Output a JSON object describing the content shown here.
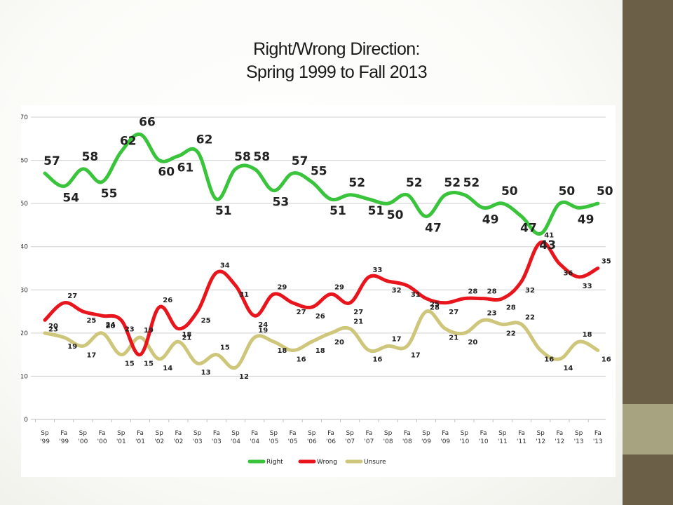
{
  "title": {
    "line1": "Right/Wrong Direction:",
    "line2": "Spring 1999 to  Fall 2013"
  },
  "colors": {
    "right": "#39c43b",
    "wrong": "#e8161c",
    "unsure": "#cec67a",
    "sidebar_dark": "#6b5f48",
    "sidebar_light": "#a7a381"
  },
  "chart_data": {
    "type": "line",
    "categories": [
      [
        "Sp",
        "'99"
      ],
      [
        "Fa",
        "'99"
      ],
      [
        "Sp",
        "'00"
      ],
      [
        "Fa",
        "'00"
      ],
      [
        "Sp",
        "'01"
      ],
      [
        "Fa",
        "'01"
      ],
      [
        "Sp",
        "'02"
      ],
      [
        "Fa",
        "'02"
      ],
      [
        "Sp",
        "'03"
      ],
      [
        "Fa",
        "'03"
      ],
      [
        "Sp",
        "'04"
      ],
      [
        "Fa",
        "'04"
      ],
      [
        "Sp",
        "'05"
      ],
      [
        "Fa",
        "'05"
      ],
      [
        "Sp",
        "'06"
      ],
      [
        "Fa",
        "'06"
      ],
      [
        "Sp",
        "'07"
      ],
      [
        "Fa",
        "'07"
      ],
      [
        "Sp",
        "'08"
      ],
      [
        "Fa",
        "'08"
      ],
      [
        "Sp",
        "'09"
      ],
      [
        "Fa",
        "'09"
      ],
      [
        "Sp",
        "'10"
      ],
      [
        "Fa",
        "'10"
      ],
      [
        "Sp",
        "'11"
      ],
      [
        "Fa",
        "'11"
      ],
      [
        "Sp",
        "'12"
      ],
      [
        "Fa",
        "'12"
      ],
      [
        "Sp",
        "'13"
      ],
      [
        "Fa",
        "'13"
      ]
    ],
    "series": [
      {
        "name": "Right",
        "values": [
          57,
          54,
          58,
          55,
          62,
          66,
          60,
          61,
          62,
          51,
          58,
          58,
          53,
          57,
          55,
          51,
          52,
          51,
          50,
          52,
          47,
          52,
          52,
          49,
          50,
          47,
          43,
          50,
          49,
          50
        ]
      },
      {
        "name": "Wrong",
        "values": [
          23,
          27,
          25,
          24,
          23,
          15,
          26,
          21,
          25,
          34,
          31,
          24,
          29,
          27,
          26,
          29,
          27,
          33,
          32,
          31,
          28,
          27,
          28,
          28,
          28,
          32,
          41,
          36,
          33,
          35
        ]
      },
      {
        "name": "Unsure",
        "values": [
          20,
          19,
          17,
          20,
          15,
          19,
          14,
          18,
          13,
          15,
          12,
          19,
          18,
          16,
          18,
          20,
          21,
          16,
          17,
          17,
          25,
          21,
          20,
          23,
          22,
          22,
          16,
          14,
          18,
          16
        ]
      }
    ],
    "ylim": [
      0,
      70
    ],
    "yticks": [
      0,
      10,
      20,
      30,
      40,
      50,
      60,
      70
    ],
    "grid": "horizontal",
    "legend": "bottom"
  }
}
